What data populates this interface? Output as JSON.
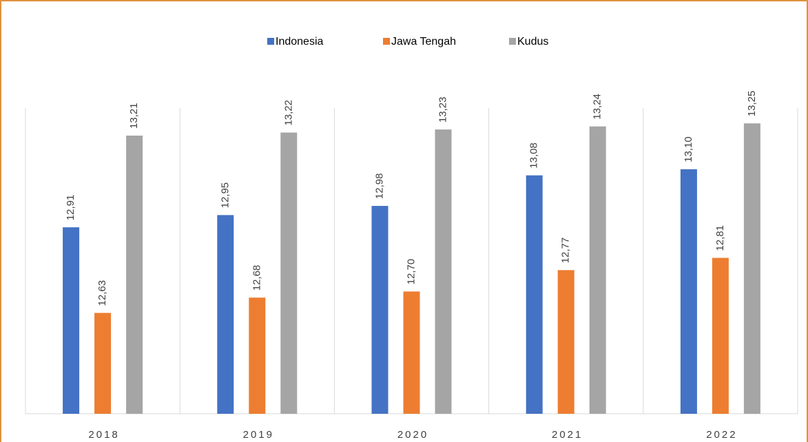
{
  "chart_data": {
    "type": "bar",
    "categories": [
      "2018",
      "2019",
      "2020",
      "2021",
      "2022"
    ],
    "series": [
      {
        "name": "Indonesia",
        "color": "#4472c4",
        "values": [
          12.91,
          12.95,
          12.98,
          13.08,
          13.1
        ],
        "value_labels": [
          "12,91",
          "12,95",
          "12,98",
          "13,08",
          "13,10"
        ]
      },
      {
        "name": "Jawa Tengah",
        "color": "#ed7d31",
        "values": [
          12.63,
          12.68,
          12.7,
          12.77,
          12.81
        ],
        "value_labels": [
          "12,63",
          "12,68",
          "12,70",
          "12,77",
          "12,81"
        ]
      },
      {
        "name": "Kudus",
        "color": "#a5a5a5",
        "values": [
          13.21,
          13.22,
          13.23,
          13.24,
          13.25
        ],
        "value_labels": [
          "13,21",
          "13,22",
          "13,23",
          "13,24",
          "13,25"
        ]
      }
    ],
    "ylim": [
      12.3,
      13.3
    ],
    "legend": "top",
    "grid": false
  }
}
